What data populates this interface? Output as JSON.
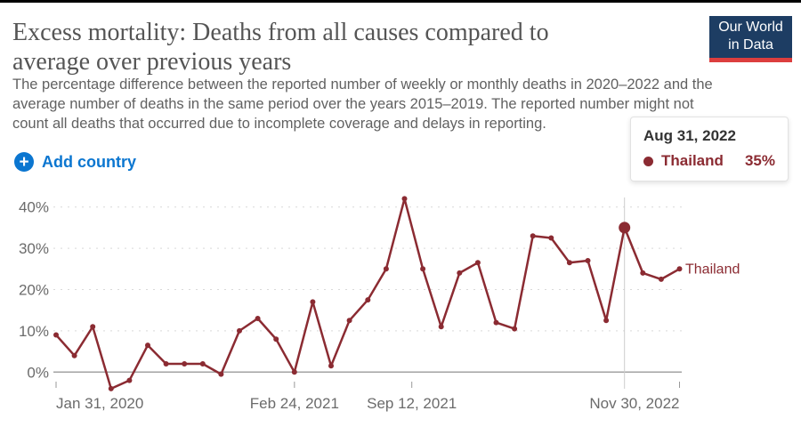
{
  "header": {
    "title_lines": [
      "Excess mortality: Deaths from all causes compared to",
      "average over previous years"
    ],
    "subtitle_lines": [
      "The percentage difference between the reported number of weekly or monthly deaths in 2020–2022 and the",
      "average number of deaths in the same period over the years 2015–2019. The reported number might not",
      "count all deaths that occurred due to incomplete coverage and delays in reporting."
    ]
  },
  "logo": {
    "line1": "Our World",
    "line2": "in Data",
    "bg_color": "#1d3d63",
    "accent_color": "#dc3e3e"
  },
  "controls": {
    "add_country_label": "Add country",
    "plus_glyph": "+",
    "accent_color": "#0b76d0"
  },
  "tooltip": {
    "date": "Aug 31, 2022",
    "series_name": "Thailand",
    "value_label": "35%",
    "series_color": "#8b2b32"
  },
  "chart_data": {
    "type": "line",
    "title": "Excess mortality: Deaths from all causes compared to average over previous years",
    "ylabel": "",
    "xlabel": "",
    "ylim": [
      -5,
      44
    ],
    "grid": "dashed-horizontal",
    "legend_position": "end-of-line-label",
    "y_ticks": [
      0,
      10,
      20,
      30,
      40
    ],
    "y_tick_suffix": "%",
    "x_ticks": [
      {
        "pos": 0,
        "label": "Jan 31, 2020",
        "anchor": "start"
      },
      {
        "pos": 13,
        "label": "Feb 24, 2021",
        "anchor": "middle"
      },
      {
        "pos": 19.4,
        "label": "Sep 12, 2021",
        "anchor": "middle"
      },
      {
        "pos": 34,
        "label": "Nov 30, 2022",
        "anchor": "end"
      }
    ],
    "series": [
      {
        "name": "Thailand",
        "color": "#8b2b32",
        "x_note": "monthly values, index 0 = Jan 31 2020 through index 34 = Nov 30 2022",
        "values": [
          9,
          4,
          11,
          -4,
          -2,
          6.5,
          2,
          2,
          2,
          -0.5,
          10,
          13,
          8,
          0,
          17,
          1.5,
          12.5,
          17.5,
          25,
          42,
          25,
          11,
          24,
          26.5,
          12,
          10.5,
          33,
          32.5,
          26.5,
          27,
          12.5,
          35,
          24,
          22.5,
          25
        ]
      }
    ],
    "highlight": {
      "index": 31,
      "date": "Aug 31, 2022",
      "value": 35
    },
    "end_label": "Thailand",
    "axis_text_color": "#6b6b6b",
    "gridline_color": "#d9d9d9",
    "zero_line_color": "#a3a3a3",
    "hover_line_color": "#cccccc"
  }
}
